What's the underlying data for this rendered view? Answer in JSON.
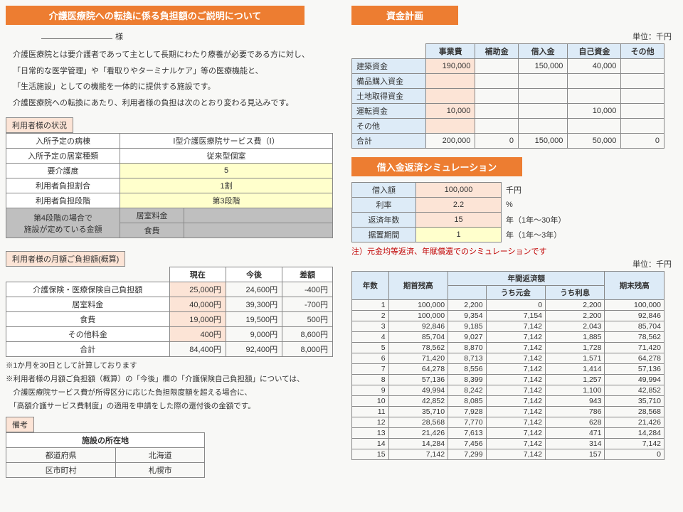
{
  "left": {
    "title": "介護医療院への転換に係る負担額のご説明について",
    "sama": "様",
    "para1": "介護医療院とは要介護者であって主として長期にわたり療養が必要である方に対し、",
    "para2": "「日常的な医学管理」や「看取りやターミナルケア」等の医療機能と、",
    "para3": "「生活施設」としての機能を一体的に提供する施設です。",
    "para4": "介護医療院への転換にあたり、利用者様の負担は次のとおり変わる見込みです。",
    "status_label": "利用者様の状況",
    "status_rows": [
      {
        "label": "入所予定の病棟",
        "val": "Ⅰ型介護医療院サービス費（Ⅰ）",
        "cls": "val-w"
      },
      {
        "label": "入所予定の居室種類",
        "val": "従来型個室",
        "cls": "val-w"
      },
      {
        "label": "要介護度",
        "val": "5",
        "cls": "val"
      },
      {
        "label": "利用者負担割合",
        "val": "1割",
        "cls": "val"
      },
      {
        "label": "利用者負担段階",
        "val": "第3段階",
        "cls": "val"
      }
    ],
    "gray_row_label": "第4段階の場合で\n施設が定めている金額",
    "gray_sub1_label": "居室料金",
    "gray_sub1_val": "",
    "gray_sub2_label": "食費",
    "gray_sub2_val": "",
    "monthly_label": "利用者様の月額ご負担額(概算)",
    "monthly_headers": [
      "",
      "現在",
      "今後",
      "差額"
    ],
    "monthly_rows": [
      {
        "label": "介護保険・医療保険自己負担額",
        "cur": "25,000円",
        "fut": "24,600円",
        "diff": "-400円"
      },
      {
        "label": "居室料金",
        "cur": "40,000円",
        "fut": "39,300円",
        "diff": "-700円"
      },
      {
        "label": "食費",
        "cur": "19,000円",
        "fut": "19,500円",
        "diff": "500円"
      },
      {
        "label": "その他料金",
        "cur": "400円",
        "fut": "9,000円",
        "diff": "8,600円"
      },
      {
        "label": "合計",
        "cur": "84,400円",
        "fut": "92,400円",
        "diff": "8,000円"
      }
    ],
    "note1": "※1か月を30日として計算しております",
    "note2": "※利用者様の月額ご負担額（概算）の「今後」欄の「介護保険自己負担額」については、",
    "note3": "　介護医療院サービス費が所得区分に応じた負担限度額を超える場合に、",
    "note4": "　「高額介護サービス費制度」の適用を申請をした際の還付後の金額です。",
    "remarks_label": "備考",
    "remarks_header": "施設の所在地",
    "remarks_rows": [
      {
        "l": "都道府県",
        "v": "北海道"
      },
      {
        "l": "区市町村",
        "v": "札幌市"
      }
    ]
  },
  "right": {
    "fund_title": "資金計画",
    "unit": "単位：千円",
    "fund_headers": [
      "",
      "事業費",
      "補助金",
      "借入金",
      "自己資金",
      "その他"
    ],
    "fund_rows": [
      {
        "label": "建築資金",
        "vals": [
          "190,000",
          "",
          "150,000",
          "40,000",
          ""
        ]
      },
      {
        "label": "備品購入資金",
        "vals": [
          "",
          "",
          "",
          "",
          ""
        ]
      },
      {
        "label": "土地取得資金",
        "vals": [
          "",
          "",
          "",
          "",
          ""
        ]
      },
      {
        "label": "運転資金",
        "vals": [
          "10,000",
          "",
          "",
          "10,000",
          ""
        ]
      },
      {
        "label": "その他",
        "vals": [
          "",
          "",
          "",
          "",
          ""
        ]
      },
      {
        "label": "合計",
        "vals": [
          "200,000",
          "0",
          "150,000",
          "50,000",
          "0"
        ],
        "total": true
      }
    ],
    "loan_title": "借入金返済シミュレーション",
    "loan_inputs": [
      {
        "l": "借入額",
        "v": "100,000",
        "u": "千円",
        "cls": "v-p"
      },
      {
        "l": "利率",
        "v": "2.2",
        "u": "%",
        "cls": "v-p"
      },
      {
        "l": "返済年数",
        "v": "15",
        "u": "年（1年～30年）",
        "cls": "v-p"
      },
      {
        "l": "据置期間",
        "v": "1",
        "u": "年（1年～3年）",
        "cls": "v-y"
      }
    ],
    "loan_note": "注）元金均等返済、年賦償還でのシミュレーションです",
    "sched_header_top": [
      "年数",
      "期首残高",
      "年間返済額",
      "期末残高"
    ],
    "sched_header_sub": [
      "うち元金",
      "うち利息"
    ],
    "sched_rows": [
      [
        "1",
        "100,000",
        "2,200",
        "0",
        "2,200",
        "100,000"
      ],
      [
        "2",
        "100,000",
        "9,354",
        "7,154",
        "2,200",
        "92,846"
      ],
      [
        "3",
        "92,846",
        "9,185",
        "7,142",
        "2,043",
        "85,704"
      ],
      [
        "4",
        "85,704",
        "9,027",
        "7,142",
        "1,885",
        "78,562"
      ],
      [
        "5",
        "78,562",
        "8,870",
        "7,142",
        "1,728",
        "71,420"
      ],
      [
        "6",
        "71,420",
        "8,713",
        "7,142",
        "1,571",
        "64,278"
      ],
      [
        "7",
        "64,278",
        "8,556",
        "7,142",
        "1,414",
        "57,136"
      ],
      [
        "8",
        "57,136",
        "8,399",
        "7,142",
        "1,257",
        "49,994"
      ],
      [
        "9",
        "49,994",
        "8,242",
        "7,142",
        "1,100",
        "42,852"
      ],
      [
        "10",
        "42,852",
        "8,085",
        "7,142",
        "943",
        "35,710"
      ],
      [
        "11",
        "35,710",
        "7,928",
        "7,142",
        "786",
        "28,568"
      ],
      [
        "12",
        "28,568",
        "7,770",
        "7,142",
        "628",
        "21,426"
      ],
      [
        "13",
        "21,426",
        "7,613",
        "7,142",
        "471",
        "14,284"
      ],
      [
        "14",
        "14,284",
        "7,456",
        "7,142",
        "314",
        "7,142"
      ],
      [
        "15",
        "7,142",
        "7,299",
        "7,142",
        "157",
        "0"
      ]
    ]
  }
}
